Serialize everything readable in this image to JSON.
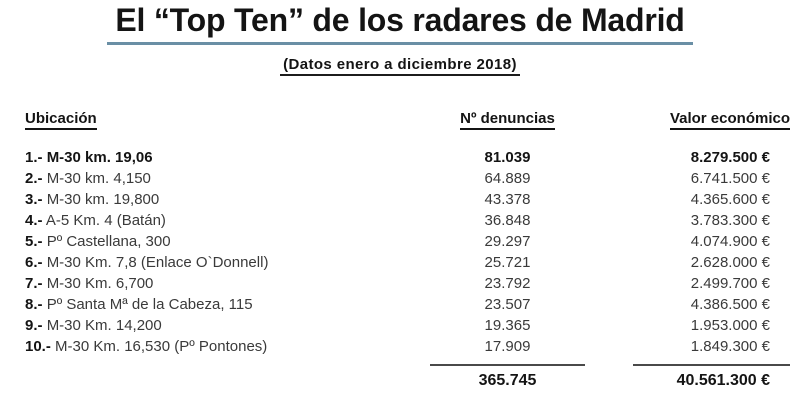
{
  "title": "El “Top Ten” de los radares de Madrid",
  "subtitle": "(Datos enero a diciembre 2018)",
  "colors": {
    "title_underline": "#6a8fa5",
    "heading_text": "#141414",
    "body_text": "#3a3a3a"
  },
  "table": {
    "headers": {
      "location": "Ubicación",
      "complaints": "Nº denuncias",
      "value": "Valor económico"
    },
    "rows": [
      {
        "rank": "1.-",
        "location": "M-30 km. 19,06",
        "complaints": "81.039",
        "value": "8.279.500 €"
      },
      {
        "rank": "2.-",
        "location": "M-30 km. 4,150",
        "complaints": "64.889",
        "value": "6.741.500 €"
      },
      {
        "rank": "3.-",
        "location": "M-30 km. 19,800",
        "complaints": "43.378",
        "value": "4.365.600 €"
      },
      {
        "rank": "4.-",
        "location": "A-5 Km. 4 (Batán)",
        "complaints": "36.848",
        "value": "3.783.300 €"
      },
      {
        "rank": "5.-",
        "location": "Pº Castellana, 300",
        "complaints": "29.297",
        "value": "4.074.900 €"
      },
      {
        "rank": "6.-",
        "location": "M-30 Km. 7,8 (Enlace O`Donnell)",
        "complaints": "25.721",
        "value": "2.628.000 €"
      },
      {
        "rank": "7.-",
        "location": "M-30 Km. 6,700",
        "complaints": "23.792",
        "value": "2.499.700 €"
      },
      {
        "rank": "8.-",
        "location": "Pº Santa Mª de la Cabeza, 115",
        "complaints": "23.507",
        "value": "4.386.500 €"
      },
      {
        "rank": "9.-",
        "location": "M-30 Km. 14,200",
        "complaints": "19.365",
        "value": "1.953.000 €"
      },
      {
        "rank": "10.-",
        "location": "M-30 Km. 16,530 (Pº Pontones)",
        "complaints": "17.909",
        "value": "1.849.300 €"
      }
    ],
    "totals": {
      "complaints": "365.745",
      "value": "40.561.300 €"
    }
  }
}
